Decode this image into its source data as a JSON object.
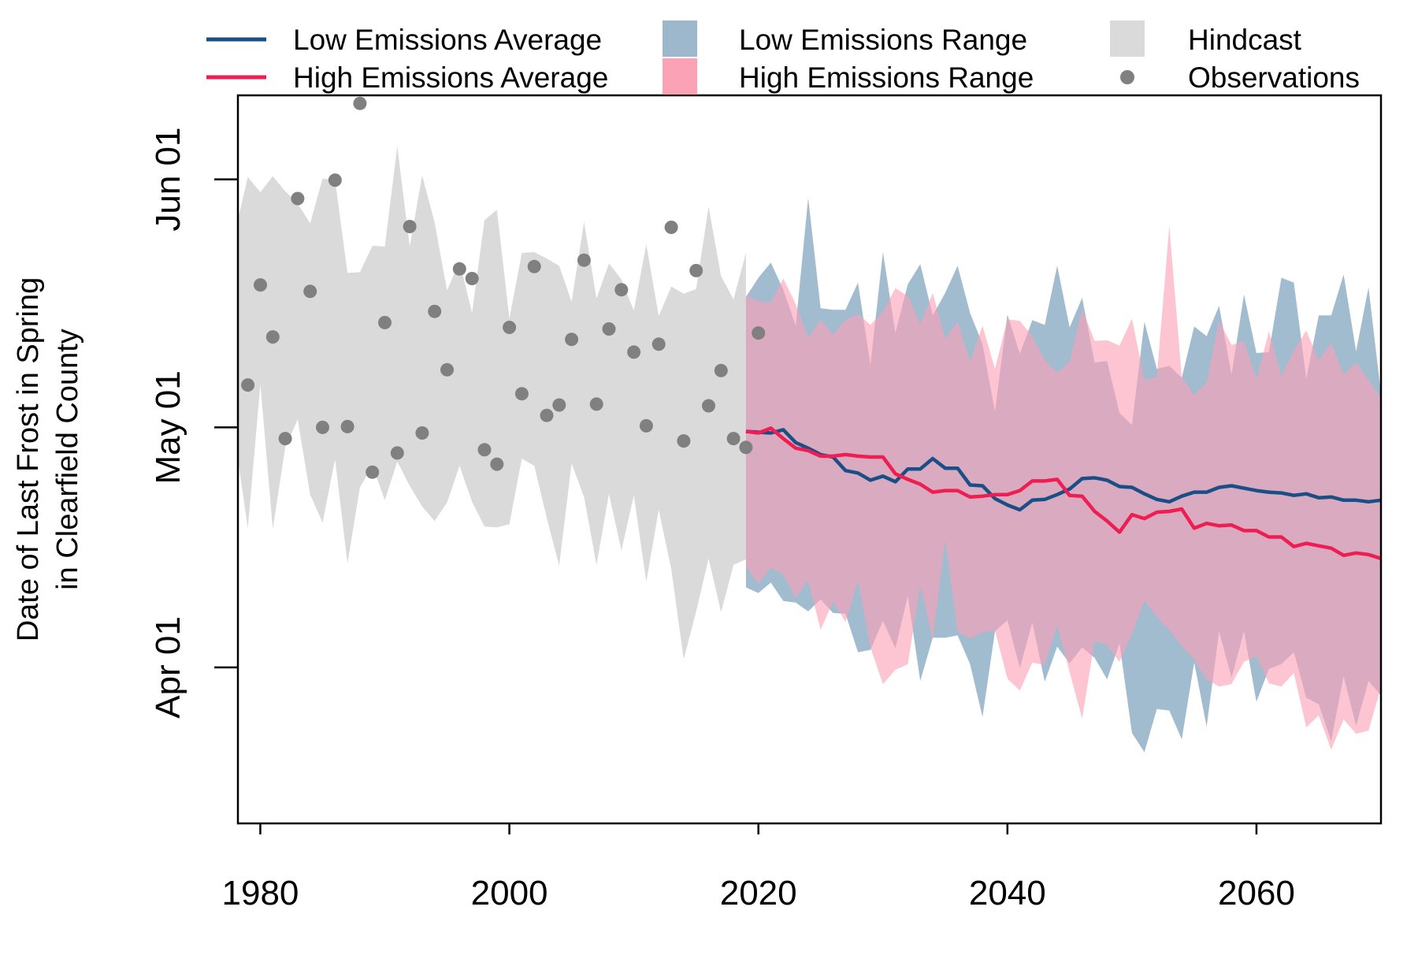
{
  "chart_data": {
    "type": "line",
    "ylabel": [
      "Date of Last Frost in Spring",
      "in Clearfield County"
    ],
    "xlabel": "",
    "x_ticks": [
      1980,
      2000,
      2020,
      2040,
      2060
    ],
    "y_ticks": [
      {
        "value": 91,
        "label": "Apr 01"
      },
      {
        "value": 121,
        "label": "May 01"
      },
      {
        "value": 152,
        "label": "Jun 01"
      }
    ],
    "xlim": [
      1978.2,
      2070
    ],
    "ylim": [
      71.5,
      162.5
    ],
    "y_unit": "day of year",
    "legend": {
      "position": "top",
      "entries": [
        {
          "label": "Low Emissions Average",
          "kind": "line",
          "color": "#1a4f85"
        },
        {
          "label": "High Emissions Average",
          "kind": "line",
          "color": "#ee1d52"
        },
        {
          "label": "Low Emissions Range",
          "kind": "fill",
          "color": "#9db8cc"
        },
        {
          "label": "High Emissions Range",
          "kind": "fill",
          "color": "#fba2b7"
        },
        {
          "label": "Hindcast",
          "kind": "fill",
          "color": "#dadada"
        },
        {
          "label": "Observations",
          "kind": "point",
          "color": "#808080"
        }
      ]
    },
    "hindcast": {
      "x": [
        1978,
        1979,
        1980,
        1981,
        1982,
        1983,
        1984,
        1985,
        1986,
        1987,
        1988,
        1989,
        1990,
        1991,
        1992,
        1993,
        1994,
        1995,
        1996,
        1997,
        1998,
        1999,
        2000,
        2001,
        2002,
        2003,
        2004,
        2005,
        2006,
        2007,
        2008,
        2009,
        2010,
        2011,
        2012,
        2013,
        2014,
        2015,
        2016,
        2017,
        2018,
        2019
      ],
      "upper": [
        147,
        152.3,
        150.4,
        152.4,
        150.5,
        149,
        146.5,
        152.1,
        151.9,
        140.3,
        140.4,
        143.7,
        143.6,
        156.1,
        143.6,
        152.5,
        146.6,
        138.1,
        141.8,
        135.3,
        146.9,
        148.2,
        134.6,
        142.8,
        142.9,
        142.1,
        141.2,
        136.7,
        146.7,
        137.1,
        141.5,
        139.5,
        135.6,
        143.9,
        134.9,
        138.6,
        137.7,
        138.3,
        148.6,
        139.9,
        137,
        142.8
      ],
      "lower": [
        117,
        108.4,
        126.4,
        108.3,
        118.5,
        122,
        112.6,
        109.1,
        117,
        104,
        113.5,
        116.2,
        111.9,
        116.7,
        113.7,
        111.1,
        109.3,
        111.6,
        116.2,
        111.7,
        108.6,
        108.5,
        108.9,
        117.1,
        116.2,
        109.7,
        103.7,
        116.5,
        112.3,
        103.8,
        112.7,
        105.6,
        112.5,
        101.7,
        110.7,
        103.3,
        92,
        98,
        104.6,
        97.9,
        103.8,
        104.5
      ]
    },
    "observations": {
      "x": [
        1979,
        1980,
        1981,
        1982,
        1983,
        1984,
        1985,
        1986,
        1987,
        1988,
        1989,
        1990,
        1991,
        1992,
        1993,
        1994,
        1995,
        1996,
        1997,
        1998,
        1999,
        2000,
        2001,
        2002,
        2003,
        2004,
        2005,
        2006,
        2007,
        2008,
        2009,
        2010,
        2011,
        2012,
        2013,
        2014,
        2015,
        2016,
        2017,
        2018,
        2019,
        2020
      ],
      "y": [
        126.3,
        138.8,
        132.3,
        119.6,
        149.6,
        138,
        121,
        151.9,
        121.1,
        161.5,
        115.4,
        134.1,
        117.8,
        146.1,
        120.3,
        135.5,
        128.2,
        140.8,
        139.6,
        118.2,
        116.4,
        133.5,
        125.2,
        141.1,
        122.5,
        123.8,
        132,
        141.9,
        123.9,
        133.3,
        138.2,
        130.4,
        121.2,
        131.4,
        146,
        119.3,
        140.6,
        123.7,
        128.1,
        119.6,
        118.5,
        132.8
      ]
    },
    "series": [
      {
        "name": "Low Emissions Average",
        "color": "#1a4f85",
        "x": [
          2019,
          2020,
          2021,
          2022,
          2023,
          2024,
          2025,
          2026,
          2027,
          2028,
          2029,
          2030,
          2031,
          2032,
          2033,
          2034,
          2035,
          2036,
          2037,
          2038,
          2039,
          2040,
          2041,
          2042,
          2043,
          2044,
          2045,
          2046,
          2047,
          2048,
          2049,
          2050,
          2051,
          2052,
          2053,
          2054,
          2055,
          2056,
          2057,
          2058,
          2059,
          2060,
          2061,
          2062,
          2063,
          2064,
          2065,
          2066,
          2067,
          2068,
          2069,
          2070
        ],
        "y": [
          120.5,
          120.4,
          120.3,
          120.7,
          119.1,
          118.4,
          117.6,
          117.3,
          115.6,
          115.3,
          114.4,
          114.9,
          114.2,
          115.8,
          115.8,
          117.1,
          115.9,
          115.9,
          113.8,
          113.7,
          112.1,
          111.3,
          110.7,
          111.9,
          112,
          112.6,
          113.3,
          114.6,
          114.7,
          114.4,
          113.6,
          113.5,
          112.7,
          112,
          111.7,
          112.4,
          112.9,
          112.9,
          113.5,
          113.7,
          113.4,
          113.1,
          112.9,
          112.8,
          112.5,
          112.7,
          112.2,
          112.3,
          111.9,
          111.9,
          111.7,
          111.9
        ]
      },
      {
        "name": "High Emissions Average",
        "color": "#ee1d52",
        "x": [
          2019,
          2020,
          2021,
          2022,
          2023,
          2024,
          2025,
          2026,
          2027,
          2028,
          2029,
          2030,
          2031,
          2032,
          2033,
          2034,
          2035,
          2036,
          2037,
          2038,
          2039,
          2040,
          2041,
          2042,
          2043,
          2044,
          2045,
          2046,
          2047,
          2048,
          2049,
          2050,
          2051,
          2052,
          2053,
          2054,
          2055,
          2056,
          2057,
          2058,
          2059,
          2060,
          2061,
          2062,
          2063,
          2064,
          2065,
          2066,
          2067,
          2068,
          2069,
          2070
        ],
        "y": [
          120.5,
          120.3,
          120.9,
          119.6,
          118.4,
          118.1,
          117.4,
          117.4,
          117.6,
          117.4,
          117.3,
          117.3,
          115.2,
          114.5,
          113.9,
          112.9,
          113.1,
          113.1,
          112.3,
          112.4,
          112.6,
          112.6,
          113.1,
          114.3,
          114.3,
          114.5,
          112.5,
          112.4,
          110.5,
          109.3,
          107.9,
          110.1,
          109.6,
          110.4,
          110.5,
          110.8,
          108.4,
          109,
          108.7,
          108.8,
          108.1,
          108.1,
          107.3,
          107.3,
          106.1,
          106.5,
          106.2,
          105.9,
          105,
          105.3,
          105.1,
          104.6
        ]
      }
    ],
    "ranges": [
      {
        "name": "Low Emissions Range",
        "color": "#9db8cc",
        "x": [
          2019,
          2020,
          2021,
          2022,
          2023,
          2024,
          2025,
          2026,
          2027,
          2028,
          2029,
          2030,
          2031,
          2032,
          2033,
          2034,
          2035,
          2036,
          2037,
          2038,
          2039,
          2040,
          2041,
          2042,
          2043,
          2044,
          2045,
          2046,
          2047,
          2048,
          2049,
          2050,
          2051,
          2052,
          2053,
          2054,
          2055,
          2056,
          2057,
          2058,
          2059,
          2060,
          2061,
          2062,
          2063,
          2064,
          2065,
          2066,
          2067,
          2068,
          2069,
          2070
        ],
        "upper": [
          137.3,
          139.7,
          141.6,
          138.2,
          133.7,
          149.7,
          135.9,
          135.7,
          135.7,
          139.1,
          128.8,
          142.9,
          132.8,
          138.9,
          141.4,
          135,
          137.8,
          141.2,
          135.3,
          131.4,
          123,
          135.1,
          130.2,
          134.4,
          133.8,
          141.2,
          133.5,
          137.2,
          129.1,
          129.3,
          122.8,
          121.3,
          134.2,
          128.3,
          128.7,
          127.2,
          133.6,
          132.4,
          136.2,
          127.6,
          137.6,
          130.3,
          130.4,
          139.7,
          139.1,
          127.1,
          135,
          135,
          140.1,
          130.5,
          138.5,
          125.2
        ],
        "lower": [
          101,
          100.3,
          101.6,
          99.3,
          99.1,
          98,
          99.5,
          97.8,
          97.7,
          92.9,
          93.2,
          96.8,
          93.4,
          99.9,
          89.3,
          94.7,
          94.7,
          95,
          91.4,
          84.8,
          95.5,
          96.9,
          90.9,
          96.6,
          89.2,
          93.6,
          91.5,
          93.5,
          92.2,
          89.5,
          94,
          82.8,
          80.4,
          85.8,
          85.6,
          82,
          91.6,
          83.6,
          95.5,
          89.7,
          95.5,
          86.7,
          90.8,
          91.4,
          92.9,
          87.2,
          86.4,
          81.8,
          89.9,
          83.7,
          89.3,
          87.5
        ]
      },
      {
        "name": "High Emissions Range",
        "color": "#fba2b7",
        "x": [
          2019,
          2020,
          2021,
          2022,
          2023,
          2024,
          2025,
          2026,
          2027,
          2028,
          2029,
          2030,
          2031,
          2032,
          2033,
          2034,
          2035,
          2036,
          2037,
          2038,
          2039,
          2040,
          2041,
          2042,
          2043,
          2044,
          2045,
          2046,
          2047,
          2048,
          2049,
          2050,
          2051,
          2052,
          2053,
          2054,
          2055,
          2056,
          2057,
          2058,
          2059,
          2060,
          2061,
          2062,
          2063,
          2064,
          2065,
          2066,
          2067,
          2068,
          2069,
          2070
        ],
        "upper": [
          137.5,
          136.8,
          136.6,
          139.6,
          136.4,
          132.2,
          134.4,
          132.6,
          134.4,
          135.2,
          133.8,
          135.5,
          138.4,
          137.4,
          133.9,
          137.8,
          132.1,
          134.2,
          129.2,
          133.7,
          128.3,
          134.5,
          134.3,
          132.4,
          129.4,
          127.8,
          129.2,
          135.8,
          131.8,
          131.9,
          131.2,
          134.6,
          126.9,
          127.3,
          146.2,
          127.3,
          125,
          126.6,
          134.3,
          131.3,
          131.8,
          127,
          133,
          127.4,
          130.6,
          133.1,
          129.4,
          131.5,
          127.6,
          129.1,
          126.9,
          124.6
        ],
        "lower": [
          103.6,
          101.5,
          103.5,
          102.6,
          99.7,
          101.9,
          95.7,
          99.2,
          96.7,
          101.9,
          93.5,
          88.9,
          90.7,
          91.4,
          101.3,
          94.5,
          107,
          95.5,
          94.6,
          95.4,
          95.6,
          89.6,
          88.1,
          91.6,
          91.3,
          96.3,
          90.4,
          84.6,
          94.3,
          93.8,
          91.7,
          95.2,
          99.4,
          97.3,
          95.7,
          93.7,
          92,
          89.5,
          88.6,
          88.9,
          91.7,
          92.4,
          89,
          88.6,
          90.3,
          83.5,
          85,
          80.7,
          84.5,
          82.7,
          83.1,
          88.5
        ]
      }
    ]
  }
}
